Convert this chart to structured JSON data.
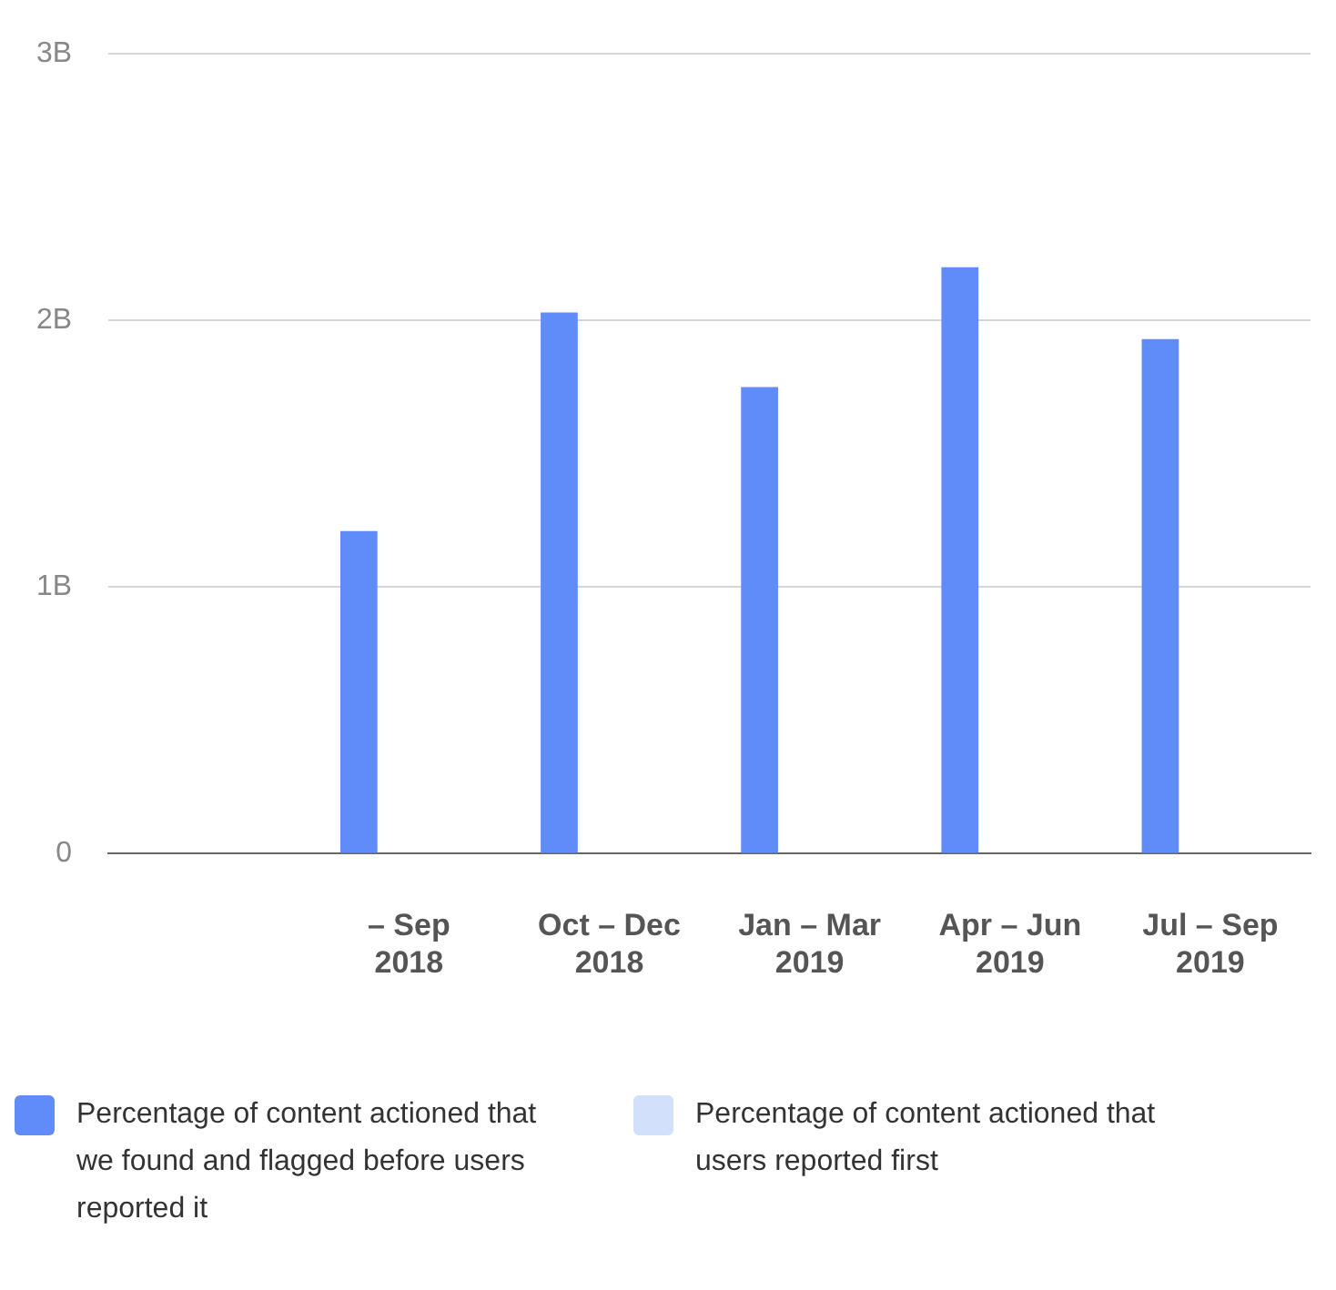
{
  "chart_data": {
    "type": "bar",
    "categories": [
      null,
      "– Sep 2018",
      "Oct – Dec 2018",
      "Jan – Mar 2019",
      "Apr – Jun 2019",
      "Jul – Sep 2019"
    ],
    "series": [
      {
        "name": "Percentage of content actioned that we found and flagged before users reported it",
        "color": "#5f8cf9",
        "values": [
          null,
          1.21,
          2.03,
          1.75,
          2.2,
          1.93
        ]
      },
      {
        "name": "Percentage of content actioned that users reported first",
        "color": "#d2e0fc",
        "values": [
          null,
          null,
          null,
          null,
          null,
          null
        ]
      }
    ],
    "ylim": [
      0,
      3
    ],
    "yticks": [
      {
        "value": 0,
        "label": "0"
      },
      {
        "value": 1,
        "label": "1B"
      },
      {
        "value": 2,
        "label": "2B"
      },
      {
        "value": 3,
        "label": "3B"
      }
    ],
    "grid": "y",
    "legend": "bottom"
  }
}
